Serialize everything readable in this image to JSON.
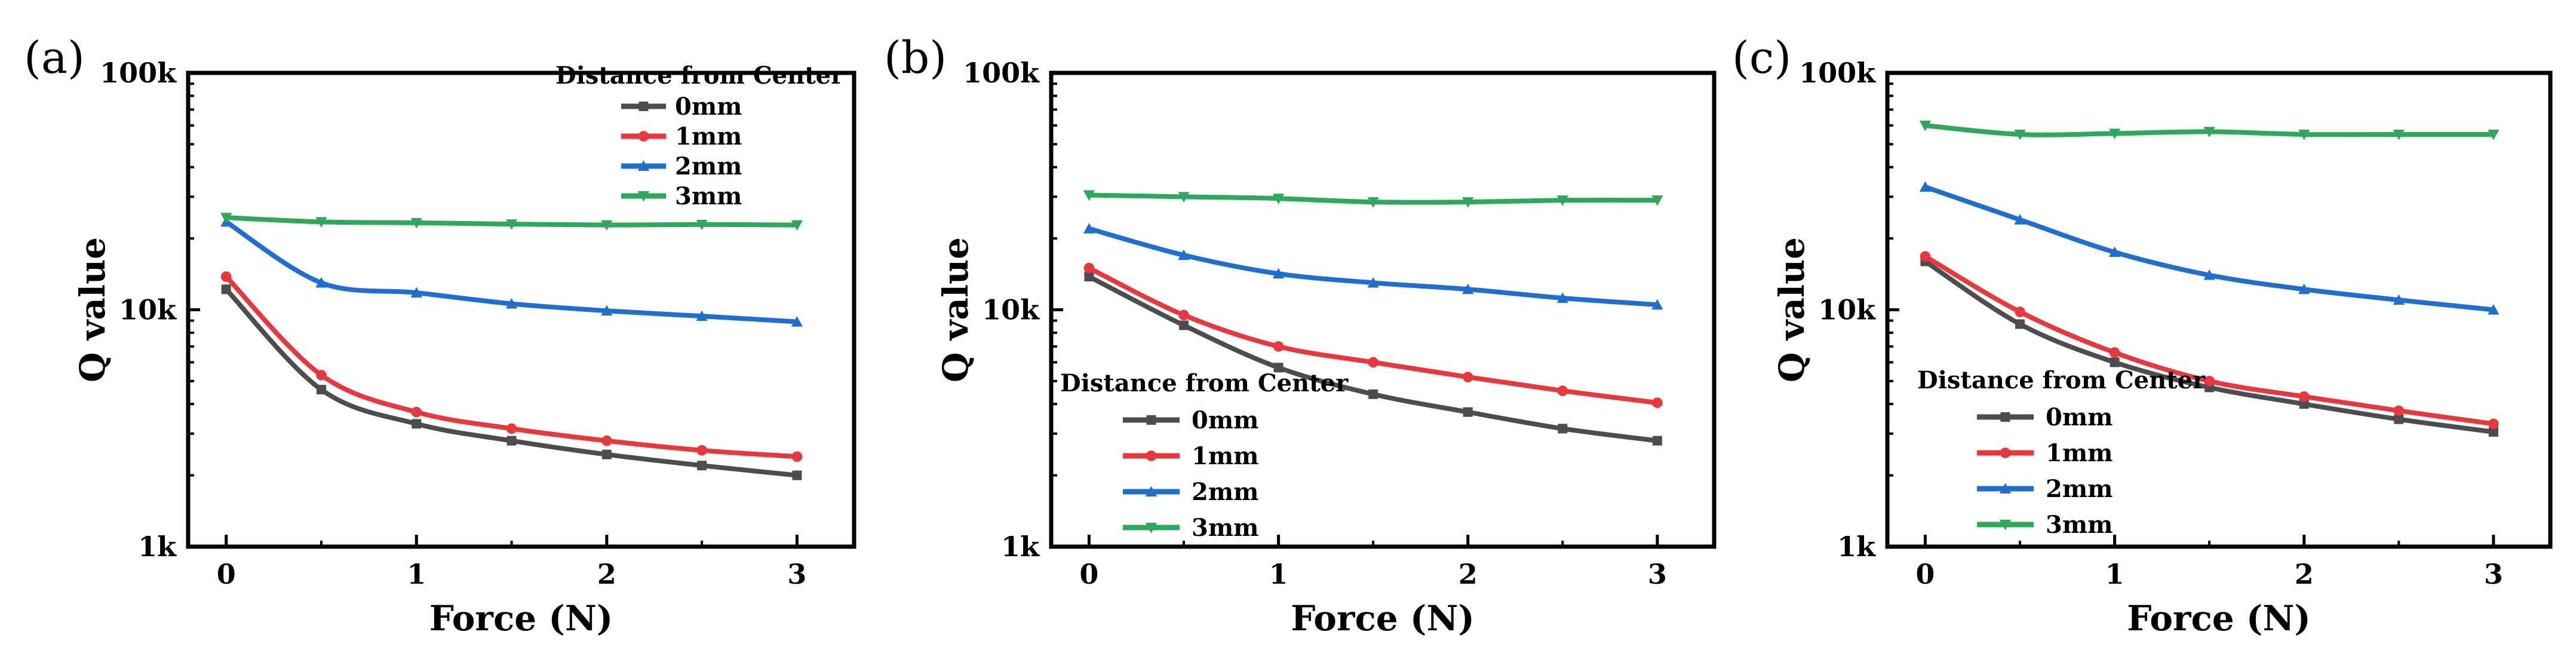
{
  "chart_data": [
    {
      "panel": "(a)",
      "type": "line",
      "xlabel": "Force (N)",
      "ylabel": "Q value",
      "yscale": "log",
      "xlim": [
        -0.2,
        3.3
      ],
      "ylim": [
        1000,
        100000
      ],
      "xticks": [
        0,
        1,
        2,
        3
      ],
      "xtick_labels": [
        "0",
        "1",
        "2",
        "3"
      ],
      "yticks": [
        1000,
        10000,
        100000
      ],
      "ytick_labels": [
        "1k",
        "10k",
        "100k"
      ],
      "legend": {
        "title": "Distance from Center",
        "position": "top-right"
      },
      "x": [
        0,
        0.5,
        1,
        1.5,
        2,
        2.5,
        3
      ],
      "series": [
        {
          "name": "0mm",
          "color": "#4d4d4d",
          "marker": "square",
          "values": [
            12200,
            4600,
            3300,
            2800,
            2450,
            2200,
            2000
          ]
        },
        {
          "name": "1mm",
          "color": "#e8383c",
          "marker": "circle",
          "values": [
            13800,
            5300,
            3700,
            3150,
            2800,
            2550,
            2400
          ]
        },
        {
          "name": "2mm",
          "color": "#1f6fd1",
          "marker": "triangle",
          "values": [
            23500,
            13000,
            11800,
            10600,
            9900,
            9400,
            8900
          ]
        },
        {
          "name": "3mm",
          "color": "#2ea85a",
          "marker": "triangle-down",
          "values": [
            24500,
            23500,
            23300,
            23000,
            22800,
            22900,
            22800
          ]
        }
      ]
    },
    {
      "panel": "(b)",
      "type": "line",
      "xlabel": "Force (N)",
      "ylabel": "Q value",
      "yscale": "log",
      "xlim": [
        -0.2,
        3.3
      ],
      "ylim": [
        1000,
        100000
      ],
      "xticks": [
        0,
        1,
        2,
        3
      ],
      "xtick_labels": [
        "0",
        "1",
        "2",
        "3"
      ],
      "yticks": [
        1000,
        10000,
        100000
      ],
      "ytick_labels": [
        "1k",
        "10k",
        "100k"
      ],
      "legend": {
        "title": "Distance from Center",
        "position": "bottom-left"
      },
      "x": [
        0,
        0.5,
        1,
        1.5,
        2,
        2.5,
        3
      ],
      "series": [
        {
          "name": "0mm",
          "color": "#4d4d4d",
          "marker": "square",
          "values": [
            13800,
            8600,
            5700,
            4400,
            3700,
            3150,
            2800
          ]
        },
        {
          "name": "1mm",
          "color": "#e8383c",
          "marker": "circle",
          "values": [
            15000,
            9500,
            7000,
            6000,
            5200,
            4550,
            4050
          ]
        },
        {
          "name": "2mm",
          "color": "#1f6fd1",
          "marker": "triangle",
          "values": [
            22000,
            17000,
            14200,
            13000,
            12200,
            11200,
            10500
          ]
        },
        {
          "name": "3mm",
          "color": "#2ea85a",
          "marker": "triangle-down",
          "values": [
            30500,
            30000,
            29500,
            28500,
            28500,
            29000,
            29000
          ]
        }
      ]
    },
    {
      "panel": "(c)",
      "type": "line",
      "xlabel": "Force (N)",
      "ylabel": "Q value",
      "yscale": "log",
      "xlim": [
        -0.2,
        3.3
      ],
      "ylim": [
        1000,
        100000
      ],
      "xticks": [
        0,
        1,
        2,
        3
      ],
      "xtick_labels": [
        "0",
        "1",
        "2",
        "3"
      ],
      "yticks": [
        1000,
        10000,
        100000
      ],
      "ytick_labels": [
        "1k",
        "10k",
        "100k"
      ],
      "legend": {
        "title": "Distance from Center",
        "position": "bottom-left"
      },
      "x": [
        0,
        0.5,
        1,
        1.5,
        2,
        2.5,
        3
      ],
      "series": [
        {
          "name": "0mm",
          "color": "#4d4d4d",
          "marker": "square",
          "values": [
            16000,
            8700,
            6000,
            4700,
            4000,
            3450,
            3050
          ]
        },
        {
          "name": "1mm",
          "color": "#e8383c",
          "marker": "circle",
          "values": [
            16800,
            9800,
            6600,
            5000,
            4300,
            3750,
            3300
          ]
        },
        {
          "name": "2mm",
          "color": "#1f6fd1",
          "marker": "triangle",
          "values": [
            33000,
            24000,
            17500,
            14000,
            12200,
            11000,
            10000
          ]
        },
        {
          "name": "3mm",
          "color": "#2ea85a",
          "marker": "triangle-down",
          "values": [
            60000,
            55000,
            55500,
            56500,
            55000,
            55000,
            55000
          ]
        }
      ]
    }
  ]
}
